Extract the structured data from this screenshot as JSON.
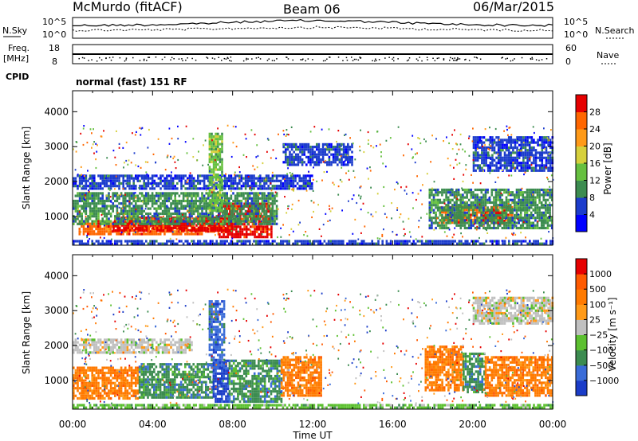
{
  "header": {
    "station": "McMurdo (fitACF)",
    "beam": "Beam 06",
    "date": "06/Mar/2015"
  },
  "panels": {
    "nsky": {
      "label": "N.Sky",
      "left_ticks": [
        "10^5",
        "10^0"
      ],
      "right_ticks": [
        "10^5",
        "10^0"
      ],
      "right_label": "N.Search"
    },
    "freq": {
      "label_line1": "Freq.",
      "label_line2": "[MHz]",
      "left_ticks": [
        "18",
        "8"
      ],
      "right_ticks": [
        "60",
        "0"
      ],
      "right_label": "Nave"
    },
    "cpid": {
      "label": "CPID",
      "value": "normal (fast) 151 RF"
    }
  },
  "chart_data": [
    {
      "type": "heatmap",
      "title": "",
      "xlabel": "Time UT",
      "ylabel": "Slant Range [km]",
      "x_ticks": [
        "00:00",
        "04:00",
        "08:00",
        "12:00",
        "16:00",
        "20:00",
        "00:00"
      ],
      "xlim_hours": [
        0,
        24
      ],
      "y_ticks": [
        1000,
        2000,
        3000,
        4000
      ],
      "ylim": [
        180,
        4600
      ],
      "colorbar": {
        "label": "Power [dB]",
        "ticks": [
          4,
          8,
          12,
          16,
          20,
          24,
          28
        ],
        "range": [
          0,
          32
        ],
        "colors": [
          "#0000ff",
          "#1c3ccc",
          "#3c8c50",
          "#66c040",
          "#d6d03c",
          "#ff9a18",
          "#ff6600",
          "#e60000"
        ]
      },
      "regions": [
        {
          "t0": 0.3,
          "t1": 7.3,
          "r0": 500,
          "r1": 900,
          "level": 6
        },
        {
          "t0": 7.3,
          "t1": 9.9,
          "r0": 400,
          "r1": 1400,
          "level": 7
        },
        {
          "t0": 2.0,
          "t1": 8.0,
          "r0": 600,
          "r1": 1000,
          "level": 7
        },
        {
          "t0": 18.4,
          "t1": 22.0,
          "r0": 800,
          "r1": 1300,
          "level": 6
        },
        {
          "t0": 20.5,
          "t1": 21.6,
          "r0": 800,
          "r1": 1200,
          "level": 7
        },
        {
          "t0": 0.0,
          "t1": 10.2,
          "r0": 800,
          "r1": 1700,
          "level": 2
        },
        {
          "t0": 17.8,
          "t1": 24.0,
          "r0": 700,
          "r1": 1800,
          "level": 2
        },
        {
          "t0": 0.0,
          "t1": 12.0,
          "r0": 1800,
          "r1": 2200,
          "level": 1
        },
        {
          "t0": 10.5,
          "t1": 14.0,
          "r0": 2500,
          "r1": 3100,
          "level": 1
        },
        {
          "t0": 20.0,
          "t1": 24.0,
          "r0": 2300,
          "r1": 3300,
          "level": 1
        },
        {
          "t0": 6.8,
          "t1": 7.5,
          "r0": 1200,
          "r1": 3400,
          "level": 3
        },
        {
          "t0": 0.0,
          "t1": 24.0,
          "r0": 200,
          "r1": 330,
          "level": 1
        }
      ]
    },
    {
      "type": "heatmap",
      "title": "",
      "xlabel": "Time UT",
      "ylabel": "Slant Range [km]",
      "x_ticks": [
        "00:00",
        "04:00",
        "08:00",
        "12:00",
        "16:00",
        "20:00",
        "00:00"
      ],
      "xlim_hours": [
        0,
        24
      ],
      "y_ticks": [
        1000,
        2000,
        3000,
        4000
      ],
      "ylim": [
        180,
        4600
      ],
      "colorbar": {
        "label": "Velocity [m s⁻¹]",
        "ticks": [
          "1000",
          "500",
          "100",
          "25",
          "−25",
          "−100",
          "−500",
          "−1000"
        ],
        "colors": [
          "#1a3cc8",
          "#3a6cd8",
          "#3c8c50",
          "#5cc030",
          "#c0c0c0",
          "#ff9a18",
          "#ff7a00",
          "#ff5a00",
          "#e60000"
        ]
      },
      "regions": [
        {
          "t0": 0.0,
          "t1": 3.3,
          "r0": 500,
          "r1": 1400,
          "level": 6
        },
        {
          "t0": 3.3,
          "t1": 7.0,
          "r0": 500,
          "r1": 1500,
          "level": 2
        },
        {
          "t0": 7.0,
          "t1": 7.8,
          "r0": 400,
          "r1": 1600,
          "level": 0
        },
        {
          "t0": 7.8,
          "t1": 10.4,
          "r0": 400,
          "r1": 1600,
          "level": 2
        },
        {
          "t0": 10.4,
          "t1": 12.4,
          "r0": 600,
          "r1": 1700,
          "level": 6
        },
        {
          "t0": 17.6,
          "t1": 19.5,
          "r0": 700,
          "r1": 2000,
          "level": 6
        },
        {
          "t0": 19.5,
          "t1": 20.6,
          "r0": 700,
          "r1": 1800,
          "level": 2
        },
        {
          "t0": 20.6,
          "t1": 24.0,
          "r0": 600,
          "r1": 1700,
          "level": 6
        },
        {
          "t0": 0.0,
          "t1": 6.0,
          "r0": 1800,
          "r1": 2200,
          "level": 4
        },
        {
          "t0": 20.0,
          "t1": 24.0,
          "r0": 2600,
          "r1": 3400,
          "level": 4
        },
        {
          "t0": 6.8,
          "t1": 7.6,
          "r0": 1400,
          "r1": 3300,
          "level": 1
        },
        {
          "t0": 0.0,
          "t1": 24.0,
          "r0": 200,
          "r1": 330,
          "level": 3
        }
      ]
    }
  ]
}
